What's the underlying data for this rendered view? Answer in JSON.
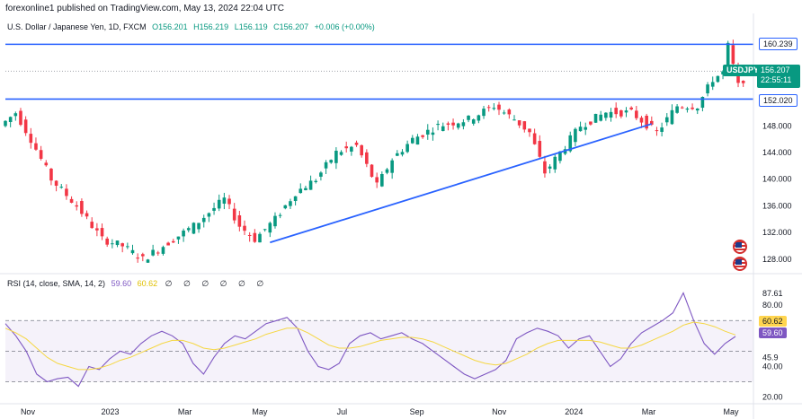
{
  "header": {
    "publisher": "forexonline1 published on TradingView.com, May 13, 2024 22:04 UTC",
    "symbol_title": "U.S. Dollar / Japanese Yen, 1D, FXCM",
    "open": "O156.201",
    "high": "H156.219",
    "low": "L156.119",
    "close": "C156.207",
    "change": "+0.006 (+0.00%)"
  },
  "price_labels": {
    "resistance": "160.239",
    "symbol": "USDJPY",
    "last": "156.207",
    "countdown": "22:55:11",
    "support": "152.020"
  },
  "rsi": {
    "title": "RSI (14, close, SMA, 14, 2)",
    "rsi_value": "59.60",
    "sma_value": "60.62",
    "extras": "∅ ∅ ∅ ∅ ∅ ∅"
  },
  "colors": {
    "up": "#089981",
    "down": "#f23645",
    "line": "#2962ff",
    "rsi": "#7e57c2",
    "sma": "#f5d742"
  },
  "chart_data": [
    {
      "type": "candlestick",
      "title": "USDJPY",
      "x_labels": [
        "Nov",
        "2023",
        "Mar",
        "May",
        "Jul",
        "Sep",
        "Nov",
        "2024",
        "Mar",
        "May"
      ],
      "y_ticks": [
        128,
        132,
        136,
        140,
        144,
        148,
        152,
        156,
        160
      ],
      "ylim": [
        126.5,
        161.5
      ],
      "price_points": [
        {
          "x": 0,
          "y": 148
        },
        {
          "x": 3,
          "y": 150
        },
        {
          "x": 6,
          "y": 146
        },
        {
          "x": 10,
          "y": 140
        },
        {
          "x": 15,
          "y": 136
        },
        {
          "x": 20,
          "y": 131
        },
        {
          "x": 24,
          "y": 130
        },
        {
          "x": 28,
          "y": 128
        },
        {
          "x": 32,
          "y": 130
        },
        {
          "x": 38,
          "y": 133
        },
        {
          "x": 44,
          "y": 137
        },
        {
          "x": 47,
          "y": 133
        },
        {
          "x": 50,
          "y": 131
        },
        {
          "x": 54,
          "y": 134
        },
        {
          "x": 58,
          "y": 138
        },
        {
          "x": 62,
          "y": 140
        },
        {
          "x": 66,
          "y": 144
        },
        {
          "x": 70,
          "y": 145
        },
        {
          "x": 74,
          "y": 139
        },
        {
          "x": 77,
          "y": 143
        },
        {
          "x": 81,
          "y": 146
        },
        {
          "x": 86,
          "y": 148
        },
        {
          "x": 92,
          "y": 149
        },
        {
          "x": 97,
          "y": 151
        },
        {
          "x": 101,
          "y": 149
        },
        {
          "x": 104,
          "y": 147
        },
        {
          "x": 107,
          "y": 141
        },
        {
          "x": 110,
          "y": 144
        },
        {
          "x": 114,
          "y": 148
        },
        {
          "x": 119,
          "y": 150
        },
        {
          "x": 124,
          "y": 150
        },
        {
          "x": 129,
          "y": 147
        },
        {
          "x": 133,
          "y": 151
        },
        {
          "x": 137,
          "y": 151
        },
        {
          "x": 140,
          "y": 155
        },
        {
          "x": 142,
          "y": 156
        },
        {
          "x": 143,
          "y": 160
        },
        {
          "x": 145,
          "y": 154
        },
        {
          "x": 147,
          "y": 156
        }
      ],
      "levels": [
        {
          "label": "resistance",
          "value": 160.239
        },
        {
          "label": "support",
          "value": 152.02
        }
      ],
      "trendline": [
        {
          "x": 52,
          "y": 130.5
        },
        {
          "x": 127,
          "y": 148.3
        }
      ]
    },
    {
      "type": "line",
      "title": "RSI (14, close, SMA, 14, 2)",
      "y_ticks": [
        20,
        40,
        45.9,
        80,
        87.61
      ],
      "ylim": [
        18,
        93
      ],
      "bands": [
        30,
        50,
        70
      ],
      "series": [
        {
          "name": "RSI",
          "values": [
            68,
            60,
            50,
            35,
            30,
            32,
            33,
            27,
            40,
            38,
            45,
            50,
            48,
            55,
            60,
            63,
            60,
            55,
            42,
            35,
            46,
            55,
            60,
            58,
            63,
            68,
            70,
            72,
            65,
            50,
            40,
            38,
            42,
            55,
            60,
            62,
            58,
            60,
            62,
            58,
            55,
            50,
            45,
            40,
            35,
            32,
            35,
            38,
            44,
            58,
            62,
            65,
            63,
            60,
            52,
            58,
            60,
            50,
            40,
            45,
            55,
            62,
            66,
            70,
            75,
            88,
            70,
            55,
            48,
            55,
            59.6
          ]
        },
        {
          "name": "SMA",
          "values": [
            65,
            62,
            58,
            52,
            46,
            42,
            40,
            38,
            38,
            39,
            41,
            44,
            46,
            49,
            52,
            55,
            57,
            57,
            55,
            52,
            51,
            52,
            54,
            56,
            58,
            61,
            63,
            65,
            65,
            62,
            58,
            54,
            52,
            52,
            53,
            55,
            57,
            58,
            59,
            59,
            58,
            56,
            53,
            50,
            47,
            44,
            42,
            41,
            42,
            45,
            48,
            52,
            55,
            57,
            57,
            57,
            57,
            56,
            54,
            52,
            52,
            54,
            57,
            60,
            63,
            67,
            69,
            68,
            66,
            63,
            60.62
          ]
        }
      ]
    }
  ]
}
